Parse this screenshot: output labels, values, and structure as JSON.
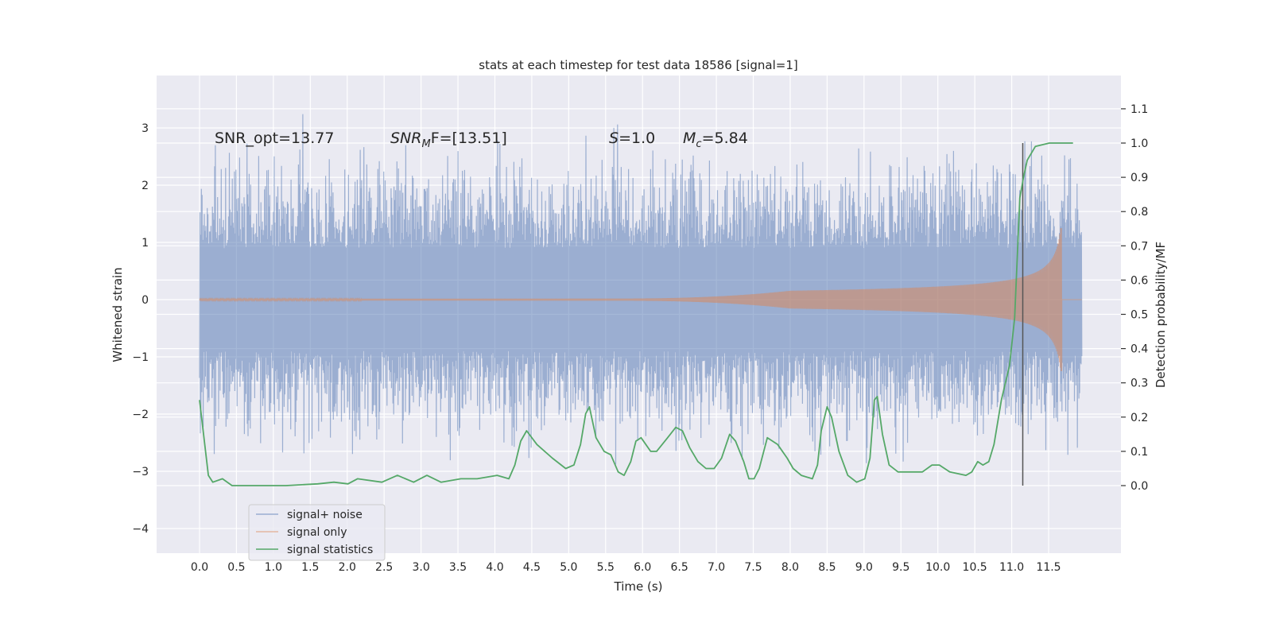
{
  "chart_data": {
    "type": "line",
    "title": "stats at each timestep for test data 18586 [signal=1]",
    "xlabel": "Time (s)",
    "ylabel": "Whitened strain",
    "ylabel_right": "Detection probability/MF",
    "xlim": [
      -0.6,
      12.6
    ],
    "ylim": [
      -4.45,
      3.9
    ],
    "ylim_right": [
      -0.2,
      1.2
    ],
    "grid": true,
    "legend_position": "lower-left",
    "x_ticks": [
      "0.0",
      "0.5",
      "1.0",
      "1.5",
      "2.0",
      "2.5",
      "3.0",
      "3.5",
      "4.0",
      "4.5",
      "5.0",
      "5.5",
      "6.0",
      "6.5",
      "7.0",
      "7.5",
      "8.0",
      "8.5",
      "9.0",
      "9.5",
      "10.0",
      "10.5",
      "11.0",
      "11.5"
    ],
    "y_ticks": [
      "3",
      "2",
      "1",
      "0",
      "−1",
      "−2",
      "−3",
      "−4"
    ],
    "y_ticks_right": [
      "1.1",
      "1.0",
      "0.9",
      "0.8",
      "0.7",
      "0.6",
      "0.5",
      "0.4",
      "0.3",
      "0.2",
      "0.1",
      "0.0"
    ],
    "annotations": {
      "snr_opt": "SNR_opt=13.77",
      "snr_mf_label": "SNR",
      "snr_mf_sub": "M",
      "snr_mf_rest": "F=[13.51]",
      "s_label": "S",
      "s_value": "=1.0",
      "mc_label": "M",
      "mc_sub": "c",
      "mc_value": "=5.84"
    },
    "vertical_line_x": 11.15,
    "series": [
      {
        "name": "signal+ noise",
        "color": "#4c72b0",
        "axis": "left",
        "time_range": [
          0,
          11.95
        ],
        "typical_amplitude": 1.5
      },
      {
        "name": "signal only",
        "color": "#dd8452",
        "axis": "left",
        "time_range": [
          0,
          11.68
        ],
        "peak_amplitude": 1.25
      },
      {
        "name": "signal statistics",
        "color": "#55a868",
        "axis": "right",
        "x": [
          0.0,
          0.12,
          0.18,
          0.31,
          0.44,
          0.74,
          1.17,
          1.6,
          1.82,
          2.01,
          2.14,
          2.47,
          2.68,
          2.9,
          3.08,
          3.27,
          3.54,
          3.76,
          4.03,
          4.19,
          4.27,
          4.35,
          4.43,
          4.57,
          4.78,
          4.96,
          5.07,
          5.16,
          5.23,
          5.28,
          5.37,
          5.48,
          5.57,
          5.67,
          5.75,
          5.84,
          5.91,
          5.98,
          6.11,
          6.19,
          6.34,
          6.45,
          6.54,
          6.64,
          6.75,
          6.86,
          6.97,
          7.07,
          7.18,
          7.26,
          7.37,
          7.44,
          7.51,
          7.58,
          7.69,
          7.83,
          7.96,
          8.04,
          8.15,
          8.3,
          8.37,
          8.42,
          8.5,
          8.56,
          8.66,
          8.78,
          8.9,
          9.01,
          9.08,
          9.14,
          9.18,
          9.25,
          9.34,
          9.46,
          9.68,
          9.79,
          9.92,
          10.02,
          10.16,
          10.38,
          10.46,
          10.54,
          10.61,
          10.69,
          10.76,
          10.86,
          10.97,
          11.04,
          11.11,
          11.16,
          11.21,
          11.32,
          11.51,
          11.83
        ],
        "y": [
          0.25,
          0.03,
          0.01,
          0.02,
          0.0,
          0.0,
          0.0,
          0.005,
          0.01,
          0.005,
          0.02,
          0.01,
          0.03,
          0.01,
          0.03,
          0.01,
          0.02,
          0.02,
          0.03,
          0.02,
          0.06,
          0.13,
          0.16,
          0.12,
          0.08,
          0.05,
          0.06,
          0.12,
          0.21,
          0.23,
          0.14,
          0.1,
          0.09,
          0.04,
          0.03,
          0.07,
          0.13,
          0.14,
          0.1,
          0.1,
          0.14,
          0.17,
          0.16,
          0.11,
          0.07,
          0.05,
          0.05,
          0.08,
          0.15,
          0.13,
          0.07,
          0.02,
          0.02,
          0.05,
          0.14,
          0.12,
          0.08,
          0.05,
          0.03,
          0.02,
          0.06,
          0.16,
          0.23,
          0.2,
          0.1,
          0.03,
          0.01,
          0.02,
          0.08,
          0.25,
          0.26,
          0.15,
          0.06,
          0.04,
          0.04,
          0.04,
          0.06,
          0.06,
          0.04,
          0.03,
          0.04,
          0.07,
          0.06,
          0.07,
          0.12,
          0.25,
          0.35,
          0.49,
          0.84,
          0.9,
          0.95,
          0.99,
          1.0,
          1.0
        ]
      }
    ]
  }
}
